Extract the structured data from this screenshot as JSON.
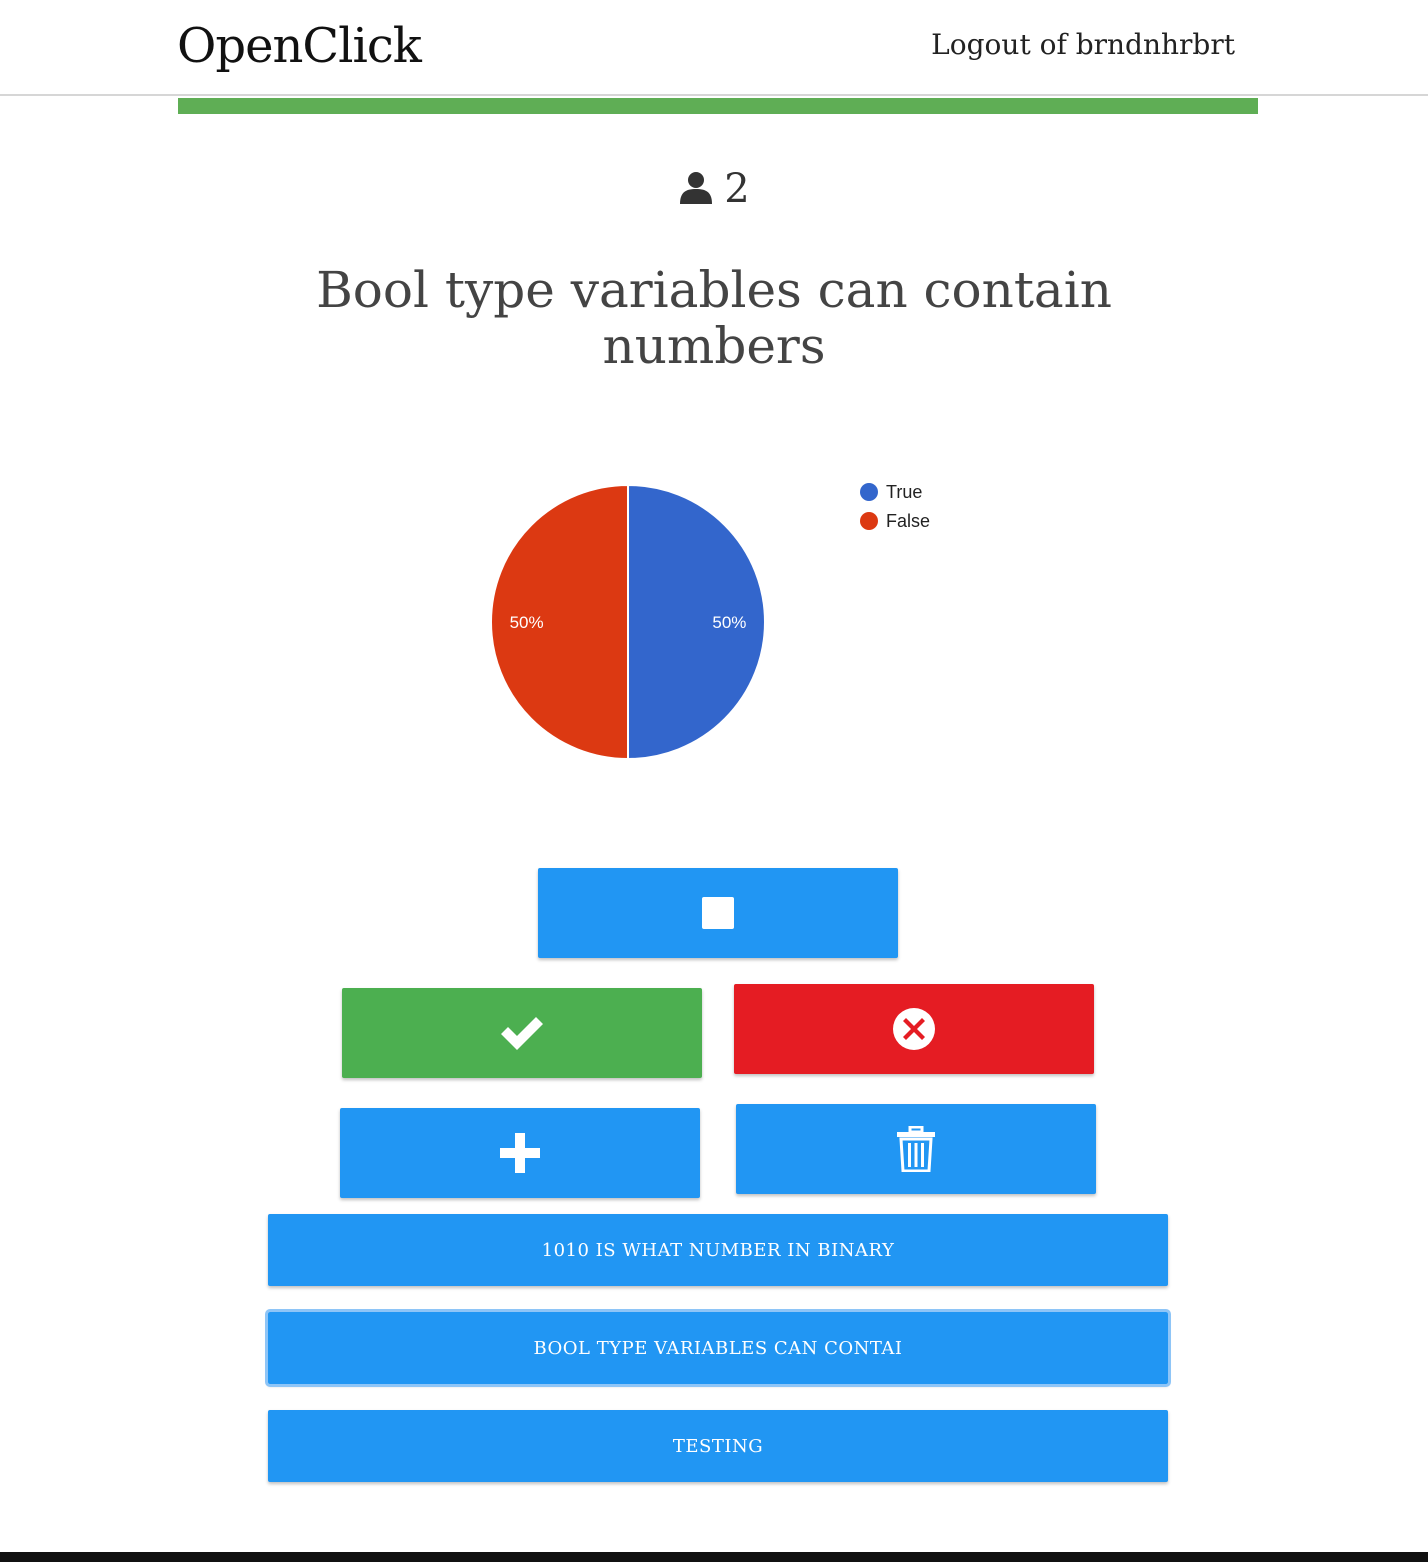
{
  "navbar": {
    "brand": "OpenClick",
    "logout_label": "Logout of brndnhrbrt"
  },
  "progress": {
    "fraction": 1.0,
    "color": "#5fae55"
  },
  "participants": {
    "icon": "user-icon",
    "count": "2"
  },
  "question": {
    "text": "Bool type variables can contain numbers"
  },
  "chart_data": {
    "type": "pie",
    "title": "",
    "slices": [
      {
        "label": "True",
        "value": 50,
        "display": "50%",
        "color": "#3366cc"
      },
      {
        "label": "False",
        "value": 50,
        "display": "50%",
        "color": "#dc3912"
      }
    ],
    "legend_position": "right"
  },
  "controls": {
    "stop": {
      "icon": "stop-icon"
    },
    "correct": {
      "icon": "check-icon"
    },
    "incorrect": {
      "icon": "close-circle-icon"
    },
    "add": {
      "icon": "plus-icon"
    },
    "delete": {
      "icon": "trash-icon"
    }
  },
  "questions_list": [
    {
      "label": "1010 is what number in binary"
    },
    {
      "label": "Bool type variables can contai"
    },
    {
      "label": "testing"
    }
  ],
  "colors": {
    "primary": "#2196f3",
    "success": "#4caf50",
    "danger": "#e51c23"
  }
}
